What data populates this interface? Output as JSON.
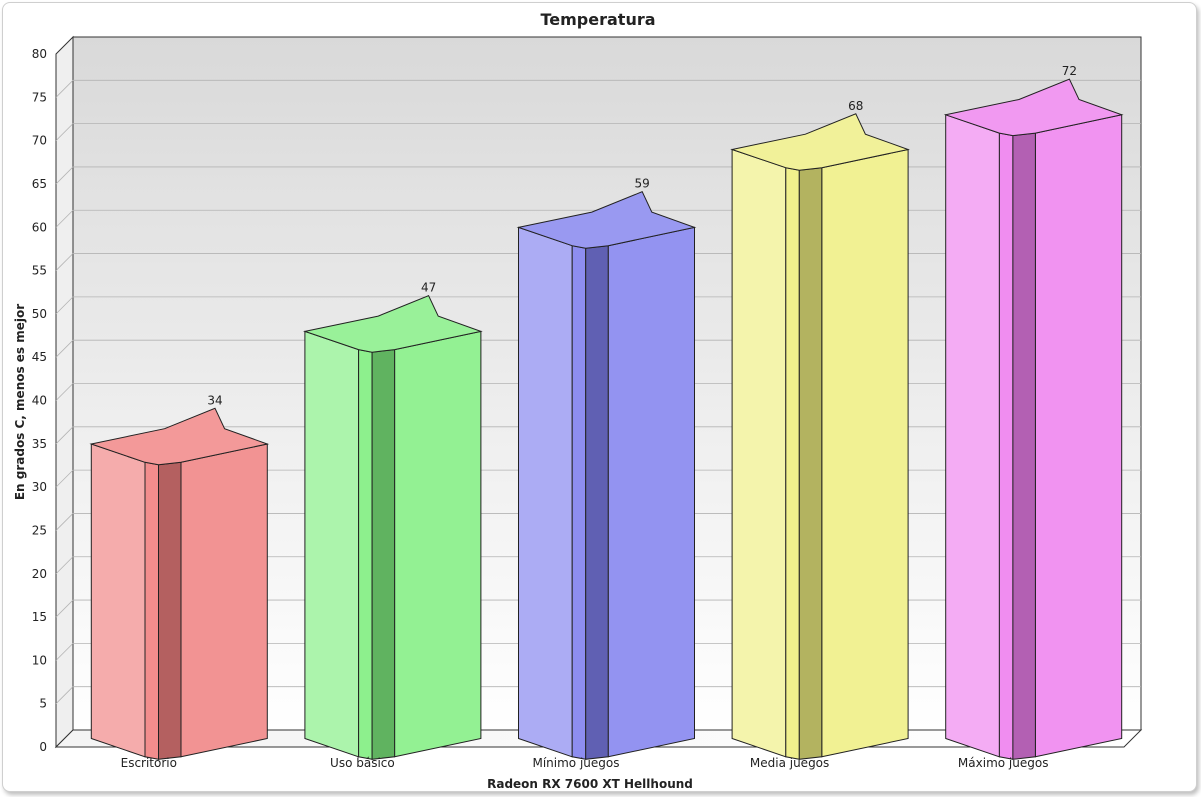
{
  "chart_data": {
    "type": "bar",
    "title": "Temperatura",
    "xlabel": "Radeon RX 7600 XT Hellhound",
    "ylabel": "En grados C, menos es mejor",
    "categories": [
      "Escritorio",
      "Uso básico",
      "Mínimo juegos",
      "Media juegos",
      "Máximo juegos"
    ],
    "values": [
      34,
      47,
      59,
      68,
      72
    ],
    "data_labels": [
      "34",
      "47",
      "59",
      "68",
      "72"
    ],
    "ylim": [
      0,
      80
    ],
    "yticks": [
      0,
      5,
      10,
      15,
      20,
      25,
      30,
      35,
      40,
      45,
      50,
      55,
      60,
      65,
      70,
      75,
      80
    ],
    "ytick_labels": [
      "0",
      "5",
      "10",
      "15",
      "20",
      "25",
      "30",
      "35",
      "40",
      "45",
      "50",
      "55",
      "60",
      "65",
      "70",
      "75",
      "80"
    ],
    "grid": true,
    "legend": "none",
    "colors": [
      "#f08080",
      "#80ee80",
      "#8080ee",
      "#eeee80",
      "#ee80ee"
    ],
    "style": "3d-star-prism"
  }
}
